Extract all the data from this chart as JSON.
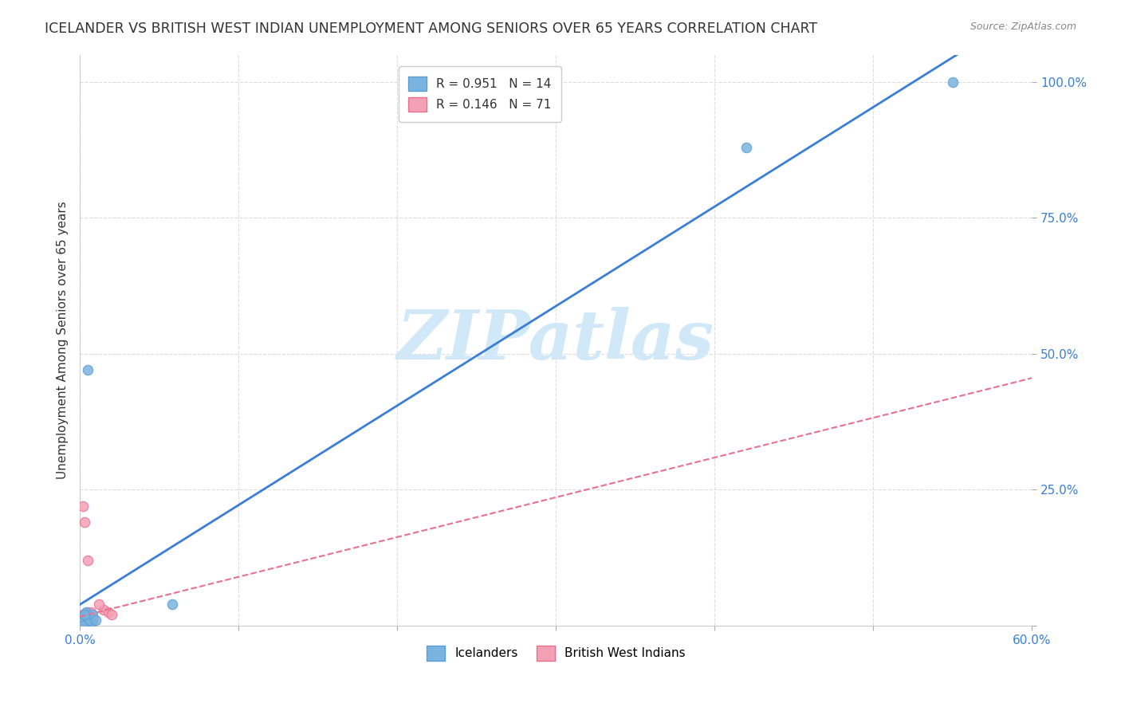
{
  "title": "ICELANDER VS BRITISH WEST INDIAN UNEMPLOYMENT AMONG SENIORS OVER 65 YEARS CORRELATION CHART",
  "source": "Source: ZipAtlas.com",
  "xlabel_color": "#4472c4",
  "ylabel": "Unemployment Among Seniors over 65 years",
  "xlim": [
    0.0,
    0.6
  ],
  "ylim": [
    0.0,
    1.05
  ],
  "xticks": [
    0.0,
    0.1,
    0.2,
    0.3,
    0.4,
    0.5,
    0.6
  ],
  "yticks": [
    0.0,
    0.25,
    0.5,
    0.75,
    1.0
  ],
  "xtick_labels": [
    "0.0%",
    "",
    "",
    "",
    "",
    "",
    "60.0%"
  ],
  "ytick_labels": [
    "",
    "25.0%",
    "50.0%",
    "75.0%",
    "100.0%"
  ],
  "grid_color": "#dddddd",
  "icelander_color": "#7ab3e0",
  "icelander_edge_color": "#5a9fd4",
  "bwi_color": "#f4a0b5",
  "bwi_edge_color": "#e87090",
  "icelander_R": 0.951,
  "icelander_N": 14,
  "bwi_R": 0.146,
  "bwi_N": 71,
  "line_blue": "#3a7fd5",
  "line_pink": "#e87090",
  "watermark": "ZIPatlas",
  "watermark_color": "#d0e8f8",
  "legend_label_icelanders": "Icelanders",
  "legend_label_bwi": "British West Indians",
  "icelander_x": [
    0.001,
    0.003,
    0.005,
    0.007,
    0.002,
    0.004,
    0.006,
    0.008,
    0.003,
    0.005,
    0.42,
    0.55,
    0.058,
    0.01
  ],
  "icelander_y": [
    0.01,
    0.02,
    0.015,
    0.005,
    0.0,
    0.025,
    0.01,
    0.02,
    0.02,
    0.47,
    0.88,
    1.0,
    0.04,
    0.01
  ],
  "bwi_x": [
    0.001,
    0.002,
    0.002,
    0.003,
    0.001,
    0.0015,
    0.002,
    0.003,
    0.004,
    0.003,
    0.005,
    0.004,
    0.003,
    0.001,
    0.002,
    0.001,
    0.002,
    0.003,
    0.001,
    0.002,
    0.003,
    0.004,
    0.005,
    0.006,
    0.007,
    0.008,
    0.001,
    0.002,
    0.003,
    0.001,
    0.002,
    0.015,
    0.018,
    0.02,
    0.012,
    0.005,
    0.007,
    0.008,
    0.003,
    0.004,
    0.001,
    0.002,
    0.001,
    0.003,
    0.005,
    0.004,
    0.006,
    0.007,
    0.002,
    0.001,
    0.003,
    0.004,
    0.001,
    0.002,
    0.002,
    0.001,
    0.003,
    0.002,
    0.001,
    0.002,
    0.003,
    0.004,
    0.001,
    0.002,
    0.003,
    0.005,
    0.004,
    0.003,
    0.002,
    0.001,
    0.003
  ],
  "bwi_y": [
    0.01,
    0.015,
    0.02,
    0.01,
    0.005,
    0.01,
    0.008,
    0.015,
    0.02,
    0.01,
    0.025,
    0.02,
    0.015,
    0.01,
    0.005,
    0.008,
    0.01,
    0.02,
    0.015,
    0.01,
    0.005,
    0.01,
    0.015,
    0.02,
    0.025,
    0.01,
    0.005,
    0.01,
    0.015,
    0.005,
    0.01,
    0.03,
    0.025,
    0.02,
    0.04,
    0.005,
    0.01,
    0.015,
    0.02,
    0.01,
    0.005,
    0.01,
    0.005,
    0.01,
    0.02,
    0.015,
    0.01,
    0.005,
    0.01,
    0.005,
    0.015,
    0.01,
    0.005,
    0.01,
    0.015,
    0.005,
    0.01,
    0.015,
    0.005,
    0.01,
    0.02,
    0.015,
    0.01,
    0.22,
    0.19,
    0.12,
    0.01,
    0.015,
    0.01,
    0.005,
    0.01
  ]
}
